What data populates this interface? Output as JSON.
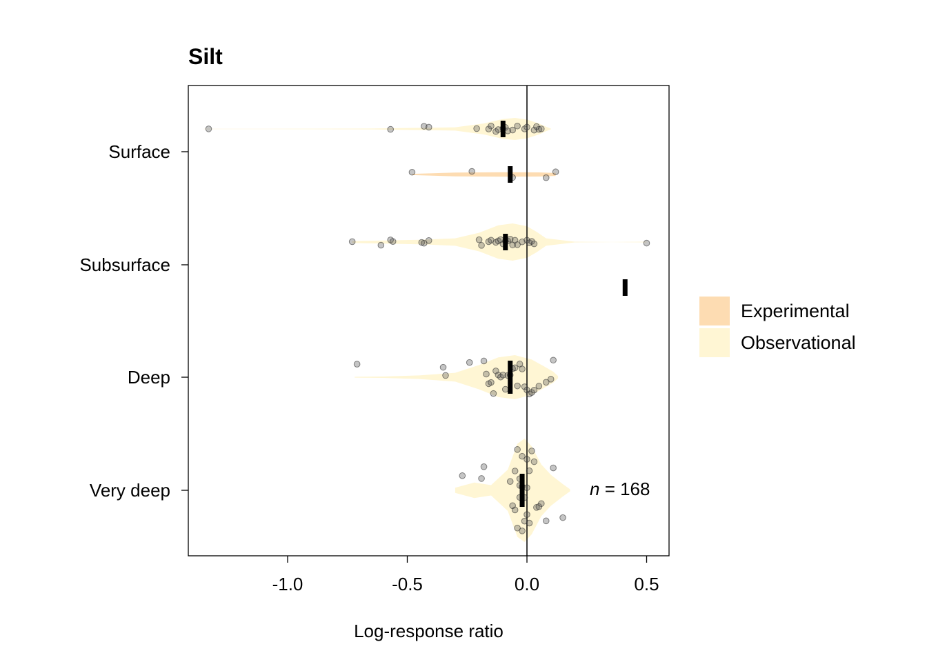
{
  "chart_data": {
    "type": "violin",
    "title": "Silt",
    "xlabel": "Log-response ratio",
    "xlim": [
      -1.42,
      0.6
    ],
    "xticks": [
      -1.0,
      -0.5,
      0.0,
      0.5
    ],
    "xtick_labels": [
      "-1.0",
      "-0.5",
      "0.0",
      "0.5"
    ],
    "reference_line_x": 0,
    "categories": [
      "Surface",
      "Subsurface",
      "Deep",
      "Very deep"
    ],
    "legend": {
      "position": "right",
      "entries": [
        {
          "name": "Experimental",
          "color": "#FDDCB2"
        },
        {
          "name": "Observational",
          "color": "#FFF6D4"
        }
      ]
    },
    "annotation": {
      "prefix": "n",
      "text": " = 168"
    },
    "series": [
      {
        "category": "Surface",
        "type": "Observational",
        "mean": -0.1,
        "points": [
          -1.33,
          -0.57,
          -0.43,
          -0.41,
          -0.21,
          -0.16,
          -0.15,
          -0.13,
          -0.12,
          -0.1,
          -0.09,
          -0.08,
          -0.06,
          -0.04,
          -0.01,
          0.0,
          0.03,
          0.04,
          0.05,
          0.06
        ],
        "density": [
          [
            -1.35,
            0.02
          ],
          [
            -1.22,
            0.01
          ],
          [
            -0.65,
            0.04
          ],
          [
            -0.45,
            0.1
          ],
          [
            -0.3,
            0.15
          ],
          [
            -0.18,
            0.5
          ],
          [
            -0.1,
            0.9
          ],
          [
            -0.05,
            1.0
          ],
          [
            0.0,
            0.85
          ],
          [
            0.05,
            0.5
          ],
          [
            0.08,
            0.2
          ],
          [
            0.1,
            0.03
          ]
        ]
      },
      {
        "category": "Surface",
        "type": "Experimental",
        "mean": -0.07,
        "points": [
          -0.48,
          -0.23,
          -0.06,
          0.08,
          0.12
        ],
        "density": [
          [
            -0.48,
            0.15
          ],
          [
            -0.3,
            0.45
          ],
          [
            -0.1,
            0.55
          ],
          [
            0.05,
            0.5
          ],
          [
            0.12,
            0.35
          ]
        ]
      },
      {
        "category": "Subsurface",
        "type": "Observational",
        "mean": -0.09,
        "points": [
          -0.73,
          -0.61,
          -0.57,
          -0.56,
          -0.44,
          -0.43,
          -0.41,
          -0.2,
          -0.19,
          -0.16,
          -0.15,
          -0.13,
          -0.12,
          -0.11,
          -0.1,
          -0.09,
          -0.08,
          -0.07,
          -0.06,
          -0.05,
          -0.04,
          -0.02,
          0.0,
          0.01,
          0.02,
          0.03,
          0.5
        ],
        "density": [
          [
            -0.73,
            0.05
          ],
          [
            -0.6,
            0.08
          ],
          [
            -0.45,
            0.12
          ],
          [
            -0.3,
            0.2
          ],
          [
            -0.2,
            0.5
          ],
          [
            -0.12,
            0.9
          ],
          [
            -0.06,
            1.0
          ],
          [
            0.0,
            0.85
          ],
          [
            0.04,
            0.55
          ],
          [
            0.08,
            0.2
          ],
          [
            0.2,
            0.02
          ],
          [
            0.35,
            0.005
          ],
          [
            0.5,
            0.02
          ]
        ]
      },
      {
        "category": "Subsurface",
        "type": "Experimental",
        "mean": 0.41,
        "points": [
          0.41
        ],
        "density": []
      },
      {
        "category": "Deep",
        "type": "Observational",
        "mean": -0.07,
        "points": [
          -0.71,
          -0.35,
          -0.34,
          -0.24,
          -0.18,
          -0.17,
          -0.16,
          -0.15,
          -0.14,
          -0.13,
          -0.12,
          -0.11,
          -0.1,
          -0.09,
          -0.08,
          -0.07,
          -0.06,
          -0.05,
          -0.04,
          -0.03,
          -0.02,
          -0.01,
          0.0,
          0.01,
          0.02,
          0.03,
          0.05,
          0.08,
          0.1,
          0.11
        ],
        "density": [
          [
            -0.72,
            0.02
          ],
          [
            -0.6,
            0.03
          ],
          [
            -0.45,
            0.08
          ],
          [
            -0.3,
            0.2
          ],
          [
            -0.2,
            0.55
          ],
          [
            -0.12,
            0.9
          ],
          [
            -0.05,
            1.0
          ],
          [
            0.02,
            0.8
          ],
          [
            0.07,
            0.5
          ],
          [
            0.11,
            0.25
          ],
          [
            0.13,
            0.05
          ]
        ]
      },
      {
        "category": "Very deep",
        "type": "Observational",
        "mean": -0.02,
        "points": [
          -0.27,
          -0.19,
          -0.18,
          -0.07,
          -0.06,
          -0.05,
          -0.05,
          -0.04,
          -0.04,
          -0.03,
          -0.03,
          -0.03,
          -0.02,
          -0.02,
          -0.02,
          -0.01,
          -0.01,
          0.0,
          0.0,
          0.0,
          0.01,
          0.01,
          0.02,
          0.03,
          0.04,
          0.05,
          0.06,
          0.08,
          0.11,
          0.15
        ],
        "density": [
          [
            -0.3,
            0.05
          ],
          [
            -0.22,
            0.15
          ],
          [
            -0.15,
            0.1
          ],
          [
            -0.08,
            0.4
          ],
          [
            -0.04,
            0.9
          ],
          [
            -0.01,
            1.0
          ],
          [
            0.02,
            0.85
          ],
          [
            0.06,
            0.5
          ],
          [
            0.1,
            0.3
          ],
          [
            0.15,
            0.12
          ],
          [
            0.18,
            0.02
          ]
        ]
      }
    ]
  }
}
